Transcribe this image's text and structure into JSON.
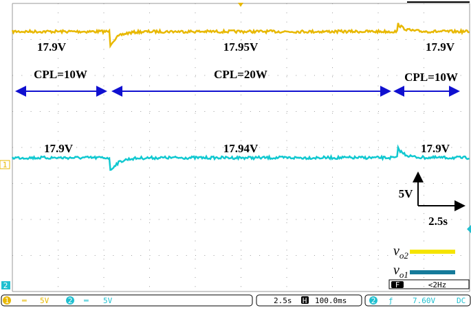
{
  "screen": {
    "voltage_labels_top": [
      "17.9V",
      "17.95V",
      "17.9V"
    ],
    "load_labels": [
      "CPL=10W",
      "CPL=20W",
      "CPL=10W"
    ],
    "voltage_labels_bottom": [
      "17.9V",
      "17.94V",
      "17.9V"
    ],
    "scale": {
      "vertical": "5V",
      "horizontal": "2.5s"
    },
    "legend": [
      {
        "symbol": "v",
        "subscript": "o2"
      },
      {
        "symbol": "v",
        "subscript": "o1"
      }
    ],
    "channel_markers": [
      "1",
      "2"
    ]
  },
  "status_bar": {
    "ch1": {
      "number": "1",
      "coupling": "═",
      "scale": "5V"
    },
    "ch2": {
      "number": "2",
      "coupling": "═",
      "scale": "5V"
    },
    "timebase": "2.5s",
    "h_icon": "H",
    "position": "100.0ms",
    "trigger": {
      "source": "2",
      "slope": "ƒ",
      "level": "7.60V",
      "coupling": "DC"
    },
    "filter": {
      "icon": "F",
      "value": "<2Hz"
    }
  }
}
